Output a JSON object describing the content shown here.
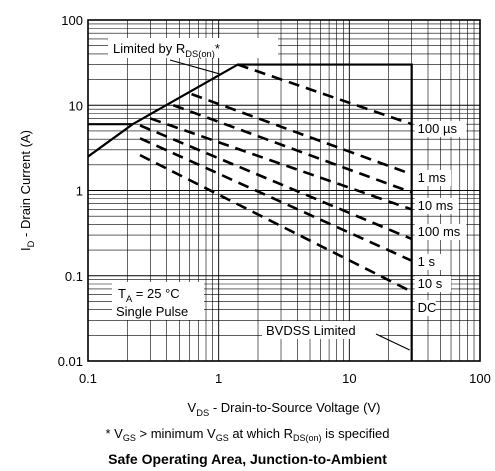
{
  "chart_data": {
    "type": "line",
    "title": "Safe Operating Area, Junction-to-Ambient",
    "xlabel": {
      "base": "V",
      "sub": "DS",
      "rest": " - Drain-to-Source Voltage (V)"
    },
    "ylabel": {
      "base": "I",
      "sub": "D",
      "rest": " - Drain Current (A)"
    },
    "x_scale": "log",
    "y_scale": "log",
    "xlim": [
      0.1,
      100
    ],
    "ylim": [
      0.01,
      100
    ],
    "x_ticks": [
      "0.1",
      "1",
      "10",
      "100"
    ],
    "y_ticks": [
      "0.01",
      "0.1",
      "1",
      "10",
      "100"
    ],
    "grid": true,
    "boundary": {
      "name": "Limited by RDS(on) / BVDSS",
      "points": [
        [
          0.1,
          2.5
        ],
        [
          0.22,
          6
        ],
        [
          1.4,
          30
        ],
        [
          30,
          30
        ],
        [
          30,
          0.01
        ]
      ]
    },
    "series": [
      {
        "name": "100 µs",
        "points": [
          [
            1.4,
            30
          ],
          [
            30,
            6
          ]
        ]
      },
      {
        "name": "1 ms",
        "points": [
          [
            0.62,
            13.5
          ],
          [
            30,
            1.55
          ]
        ]
      },
      {
        "name": "10 ms",
        "points": [
          [
            0.45,
            10
          ],
          [
            30,
            0.95
          ]
        ]
      },
      {
        "name": "100 ms",
        "points": [
          [
            0.3,
            7
          ],
          [
            30,
            0.6
          ]
        ]
      },
      {
        "name": "1 s",
        "points": [
          [
            0.25,
            5.8
          ],
          [
            30,
            0.27
          ]
        ]
      },
      {
        "name": "10 s",
        "points": [
          [
            0.25,
            4.1
          ],
          [
            30,
            0.15
          ]
        ]
      },
      {
        "name": "DC",
        "points": [
          [
            0.25,
            2.6
          ],
          [
            30,
            0.065
          ]
        ]
      }
    ],
    "dc_flat_segment": [
      [
        0.1,
        6
      ],
      [
        0.22,
        6
      ]
    ],
    "annotations": {
      "rds_label": {
        "base": "Limited by R",
        "sub": "DS(on)",
        "rest": "*"
      },
      "bvdss_label": "BVDSS Limited",
      "ta_label": {
        "base": "T",
        "sub": "A",
        "rest": " = 25 °C"
      },
      "pulse_label": "Single Pulse"
    }
  },
  "note": {
    "prefix": "* V",
    "sub1": "GS",
    "mid": " > minimum V",
    "sub2": "GS",
    "mid2": " at which R",
    "sub3": "DS(on)",
    "suffix": " is specified"
  },
  "colors": {
    "ink": "#000000",
    "grid": "#000000",
    "background": "#ffffff"
  }
}
